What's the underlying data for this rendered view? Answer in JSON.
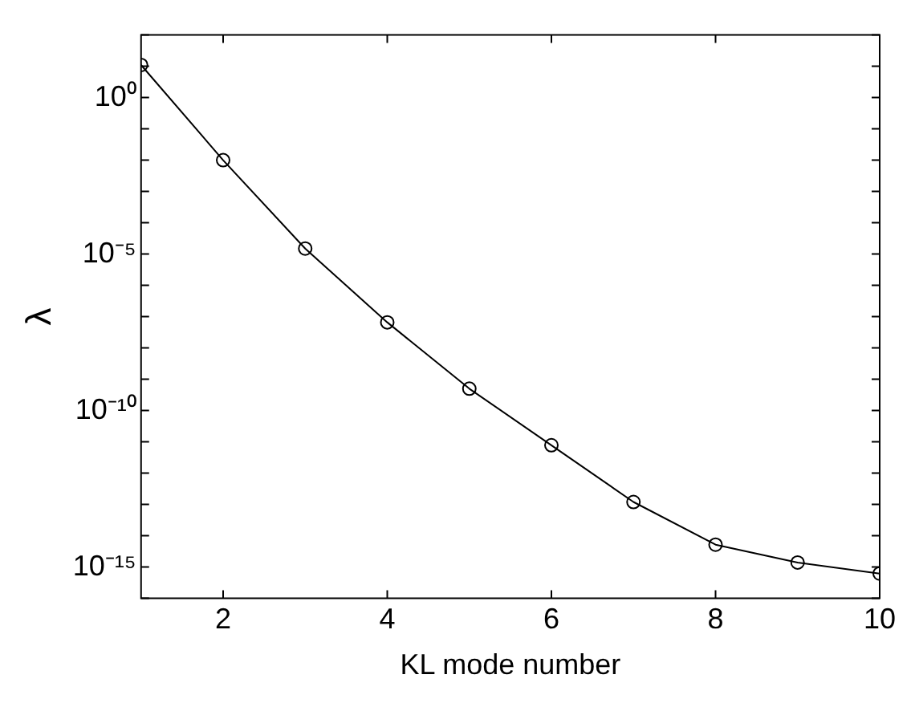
{
  "chart_data": {
    "type": "line",
    "xlabel": "KL mode number",
    "ylabel": "λ",
    "x": [
      1,
      2,
      3,
      4,
      5,
      6,
      7,
      8,
      9,
      10
    ],
    "series": [
      {
        "color": "#000000",
        "values": [
          11,
          0.01,
          1.5e-05,
          6.6e-08,
          5e-10,
          7.8e-12,
          1.2e-13,
          5.2e-15,
          1.4e-15,
          6.2e-16
        ]
      }
    ],
    "log": "y",
    "xlim": [
      1,
      10
    ],
    "xticks": [
      2,
      4,
      6,
      8,
      10
    ],
    "ylim": [
      1e-16,
      100
    ],
    "yticks": [
      {
        "value": 1e-16,
        "label": null
      },
      {
        "value": 1e-15,
        "label": "10⁻¹⁵"
      },
      {
        "value": 1e-14,
        "label": null
      },
      {
        "value": 1e-13,
        "label": null
      },
      {
        "value": 1e-12,
        "label": null
      },
      {
        "value": 1e-11,
        "label": null
      },
      {
        "value": 1e-10,
        "label": "10⁻¹⁰"
      },
      {
        "value": 1e-09,
        "label": null
      },
      {
        "value": 1e-08,
        "label": null
      },
      {
        "value": 1e-07,
        "label": null
      },
      {
        "value": 1e-06,
        "label": null
      },
      {
        "value": 1e-05,
        "label": "10⁻⁵"
      },
      {
        "value": 0.0001,
        "label": null
      },
      {
        "value": 0.001,
        "label": null
      },
      {
        "value": 0.01,
        "label": null
      },
      {
        "value": 0.1,
        "label": null
      },
      {
        "value": 1,
        "label": "10⁰"
      },
      {
        "value": 10,
        "label": null
      },
      {
        "value": 100,
        "label": null
      }
    ],
    "grid": false,
    "legend": false,
    "marker": "circle",
    "line_style": "solid"
  }
}
